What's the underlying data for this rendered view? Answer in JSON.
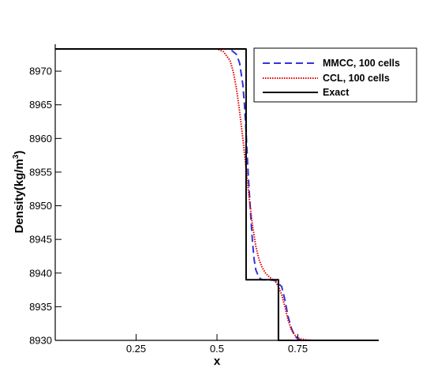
{
  "chart_data": {
    "type": "line",
    "title": "",
    "xlabel": "x",
    "ylabel": "Density(kg/m³)",
    "ylabel_parts": {
      "main": "Density(kg/m",
      "sup": "3",
      "close": ")"
    },
    "xlim": [
      0.0,
      1.0
    ],
    "ylim": [
      8930,
      8974
    ],
    "x_ticks": [
      0.25,
      0.5,
      0.75
    ],
    "x_tick_labels": [
      "0.25",
      "0.5",
      "0.75"
    ],
    "y_ticks": [
      8930,
      8935,
      8940,
      8945,
      8950,
      8955,
      8960,
      8965,
      8970
    ],
    "y_tick_labels": [
      "8930",
      "8935",
      "8940",
      "8945",
      "8950",
      "8955",
      "8960",
      "8965",
      "8970"
    ],
    "grid": false,
    "legend_position": "top-right",
    "series": [
      {
        "name": "MMCC, 100 cells",
        "color": "#3333dd",
        "style": "dashed",
        "x": [
          0.0,
          0.54,
          0.56,
          0.57,
          0.58,
          0.585,
          0.59,
          0.595,
          0.6,
          0.605,
          0.61,
          0.615,
          0.62,
          0.63,
          0.64,
          0.66,
          0.68,
          0.7,
          0.71,
          0.72,
          0.73,
          0.74,
          0.75,
          0.76,
          0.77,
          1.0
        ],
        "y": [
          8973.3,
          8973.3,
          8972.5,
          8971.2,
          8968.0,
          8965.0,
          8961.0,
          8956.0,
          8952.0,
          8948.0,
          8944.5,
          8942.0,
          8940.5,
          8939.3,
          8939.0,
          8939.0,
          8938.9,
          8938.0,
          8936.0,
          8933.5,
          8931.8,
          8930.7,
          8930.2,
          8930.05,
          8930.0,
          8930.0
        ]
      },
      {
        "name": "CCL, 100 cells",
        "color": "#dd0000",
        "style": "dotted",
        "x": [
          0.0,
          0.5,
          0.52,
          0.54,
          0.55,
          0.56,
          0.57,
          0.58,
          0.59,
          0.6,
          0.61,
          0.62,
          0.63,
          0.64,
          0.65,
          0.66,
          0.67,
          0.68,
          0.69,
          0.7,
          0.71,
          0.72,
          0.73,
          0.74,
          0.75,
          0.76,
          0.78,
          0.8,
          1.0
        ],
        "y": [
          8973.3,
          8973.3,
          8972.9,
          8971.6,
          8970.0,
          8967.5,
          8964.0,
          8960.0,
          8955.5,
          8951.0,
          8947.0,
          8944.0,
          8942.0,
          8940.8,
          8940.0,
          8939.5,
          8939.1,
          8938.8,
          8938.0,
          8936.8,
          8935.0,
          8933.0,
          8931.6,
          8930.8,
          8930.4,
          8930.2,
          8930.05,
          8930.0,
          8930.0
        ]
      },
      {
        "name": "Exact",
        "color": "#000000",
        "style": "solid",
        "x": [
          0.0,
          0.59,
          0.59,
          0.69,
          0.69,
          1.0
        ],
        "y": [
          8973.3,
          8973.3,
          8939.0,
          8939.0,
          8930.0,
          8930.0
        ]
      }
    ]
  }
}
